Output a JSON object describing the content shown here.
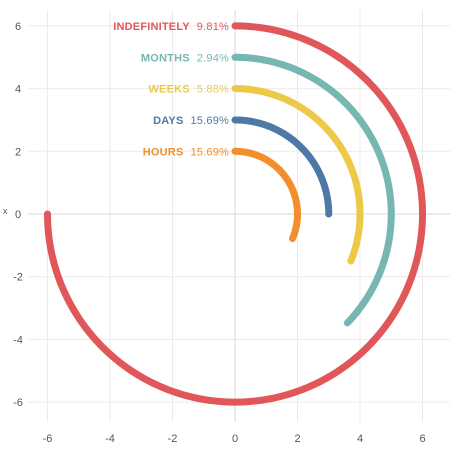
{
  "chart_data": {
    "type": "line",
    "title": "",
    "xlabel": "",
    "ylabel": "",
    "xlim": [
      -6.5,
      6.5
    ],
    "ylim": [
      -6.5,
      6.5
    ],
    "x_ticks": [
      -6,
      -4,
      -2,
      0,
      2,
      4,
      6
    ],
    "y_ticks": [
      -6,
      -4,
      -2,
      0,
      2,
      4,
      6
    ],
    "grid": true,
    "legend": "inline labels at arc starts",
    "series": [
      {
        "name": "INDEFINITELY",
        "value_label": "9.81%",
        "radius": 6,
        "start_point": [
          0,
          6
        ],
        "end_point": [
          -6,
          0
        ],
        "sweep_degrees": 270,
        "color": "#e15759"
      },
      {
        "name": "MONTHS",
        "value_label": "2.94%",
        "radius": 5,
        "start_point": [
          0,
          5
        ],
        "end_point": [
          3.6,
          -3.5
        ],
        "sweep_degrees": 134,
        "color": "#76b7b2"
      },
      {
        "name": "WEEKS",
        "value_label": "5.88%",
        "radius": 4,
        "start_point": [
          0,
          4
        ],
        "end_point": [
          3.75,
          -1.5
        ],
        "sweep_degrees": 112,
        "color": "#edc948"
      },
      {
        "name": "DAYS",
        "value_label": "15.69%",
        "radius": 3,
        "start_point": [
          0,
          3
        ],
        "end_point": [
          3,
          0
        ],
        "sweep_degrees": 90,
        "color": "#4e79a7"
      },
      {
        "name": "HOURS",
        "value_label": "15.69%",
        "radius": 2,
        "start_point": [
          0,
          2
        ],
        "end_point": [
          1.88,
          -0.8
        ],
        "sweep_degrees": 113,
        "color": "#f28e2b"
      }
    ]
  }
}
